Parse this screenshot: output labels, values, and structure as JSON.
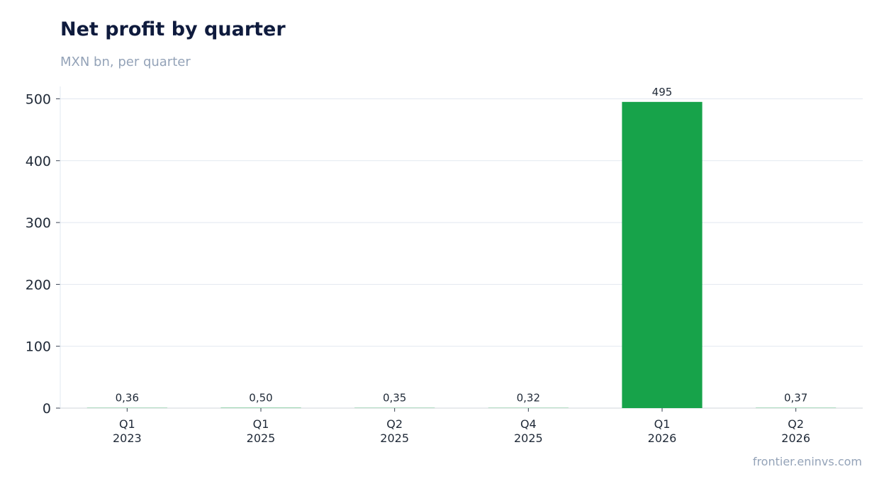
{
  "chart_data": {
    "type": "bar",
    "title": "Net profit by quarter",
    "subtitle": "MXN bn, per quarter",
    "xlabel": "",
    "ylabel": "",
    "categories": [
      [
        "Q1",
        "2023"
      ],
      [
        "Q1",
        "2025"
      ],
      [
        "Q2",
        "2025"
      ],
      [
        "Q4",
        "2025"
      ],
      [
        "Q1",
        "2026"
      ],
      [
        "Q2",
        "2026"
      ]
    ],
    "values": [
      0.36,
      0.5,
      0.35,
      0.32,
      495,
      0.37
    ],
    "data_labels": [
      "0,36",
      "0,50",
      "0,35",
      "0,32",
      "495",
      "0,37"
    ],
    "ylim": [
      0,
      520
    ],
    "yticks": [
      0,
      100,
      200,
      300,
      400,
      500
    ],
    "grid": true,
    "legend": "none",
    "colors": {
      "bar": "#17a34a",
      "grid": "#e2e8f0",
      "axis": "#d1d5db",
      "title": "#0f1b3d",
      "muted": "#94a3b8"
    }
  },
  "source": "frontier.eninvs.com"
}
